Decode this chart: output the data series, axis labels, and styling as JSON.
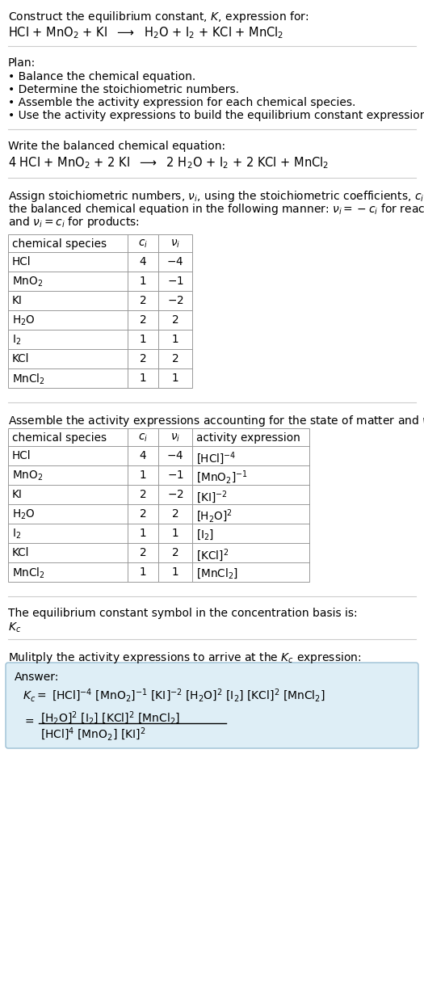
{
  "bg_color": "#ffffff",
  "text_color": "#000000",
  "title_line1": "Construct the equilibrium constant, $K$, expression for:",
  "reaction_unbalanced": "HCl + MnO$_2$ + KI  $\\longrightarrow$  H$_2$O + I$_2$ + KCl + MnCl$_2$",
  "plan_header": "Plan:",
  "plan_items": [
    "• Balance the chemical equation.",
    "• Determine the stoichiometric numbers.",
    "• Assemble the activity expression for each chemical species.",
    "• Use the activity expressions to build the equilibrium constant expression."
  ],
  "balanced_header": "Write the balanced chemical equation:",
  "reaction_balanced": "4 HCl + MnO$_2$ + 2 KI  $\\longrightarrow$  2 H$_2$O + I$_2$ + 2 KCl + MnCl$_2$",
  "stoich_lines": [
    "Assign stoichiometric numbers, $\\nu_i$, using the stoichiometric coefficients, $c_i$, from",
    "the balanced chemical equation in the following manner: $\\nu_i = -c_i$ for reactants",
    "and $\\nu_i = c_i$ for products:"
  ],
  "table1_headers": [
    "chemical species",
    "$c_i$",
    "$\\nu_i$"
  ],
  "table1_rows": [
    [
      "HCl",
      "4",
      "$-$4"
    ],
    [
      "MnO$_2$",
      "1",
      "$-$1"
    ],
    [
      "KI",
      "2",
      "$-$2"
    ],
    [
      "H$_2$O",
      "2",
      "2"
    ],
    [
      "I$_2$",
      "1",
      "1"
    ],
    [
      "KCl",
      "2",
      "2"
    ],
    [
      "MnCl$_2$",
      "1",
      "1"
    ]
  ],
  "activity_header": "Assemble the activity expressions accounting for the state of matter and $\\nu_i$:",
  "table2_headers": [
    "chemical species",
    "$c_i$",
    "$\\nu_i$",
    "activity expression"
  ],
  "table2_rows": [
    [
      "HCl",
      "4",
      "$-$4",
      "[HCl]$^{-4}$"
    ],
    [
      "MnO$_2$",
      "1",
      "$-$1",
      "[MnO$_2$]$^{-1}$"
    ],
    [
      "KI",
      "2",
      "$-$2",
      "[KI]$^{-2}$"
    ],
    [
      "H$_2$O",
      "2",
      "2",
      "[H$_2$O]$^2$"
    ],
    [
      "I$_2$",
      "1",
      "1",
      "[I$_2$]"
    ],
    [
      "KCl",
      "2",
      "2",
      "[KCl]$^2$"
    ],
    [
      "MnCl$_2$",
      "1",
      "1",
      "[MnCl$_2$]"
    ]
  ],
  "kc_text": "The equilibrium constant symbol in the concentration basis is:",
  "kc_symbol": "$K_c$",
  "multiply_text": "Mulitply the activity expressions to arrive at the $K_c$ expression:",
  "answer_label": "Answer:",
  "kc_eq1": "$K_c = $ [HCl]$^{-4}$ [MnO$_2$]$^{-1}$ [KI]$^{-2}$ [H$_2$O]$^2$ [I$_2$] [KCl]$^2$ [MnCl$_2$]",
  "kc_eq2_num": "[H$_2$O]$^2$ [I$_2$] [KCl]$^2$ [MnCl$_2$]",
  "kc_eq2_den": "[HCl]$^4$ [MnO$_2$] [KI]$^2$",
  "answer_box_color": "#deeef6",
  "answer_box_border": "#9bbfd4"
}
